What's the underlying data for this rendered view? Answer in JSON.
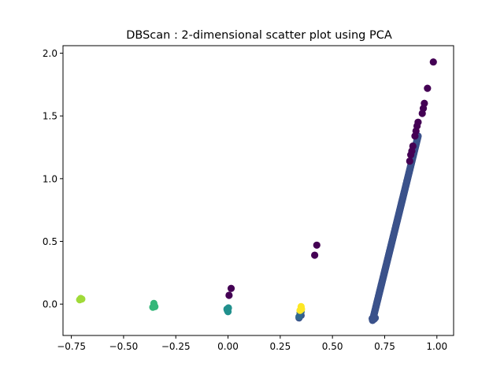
{
  "chart_data": {
    "type": "scatter",
    "title": "DBScan : 2-dimensional scatter plot using PCA",
    "xlabel": "",
    "ylabel": "",
    "xlim": [
      -0.79,
      1.08
    ],
    "ylim": [
      -0.25,
      2.06
    ],
    "grid": false,
    "legend": "none",
    "x_ticks": [
      -0.75,
      -0.5,
      -0.25,
      0.0,
      0.25,
      0.5,
      0.75,
      1.0
    ],
    "x_tick_labels": [
      "−0.75",
      "−0.50",
      "−0.25",
      "0.00",
      "0.25",
      "0.50",
      "0.75",
      "1.00"
    ],
    "y_ticks": [
      0.0,
      0.5,
      1.0,
      1.5,
      2.0
    ],
    "y_tick_labels": [
      "0.0",
      "0.5",
      "1.0",
      "1.5",
      "2.0"
    ],
    "cluster_colors": {
      "noise": "#440154",
      "c_line": "#3b528b",
      "c_dark": "#31688e",
      "c_zero": "#21908d",
      "c_mid": "#35b779",
      "c_lime": "#a0da39",
      "c_yellow": "#fde725"
    },
    "series": [
      {
        "cluster": "noise",
        "points": [
          [
            0.983,
            1.93
          ],
          [
            0.955,
            1.72
          ],
          [
            0.94,
            1.6
          ],
          [
            0.935,
            1.56
          ],
          [
            0.93,
            1.52
          ],
          [
            0.91,
            1.45
          ],
          [
            0.905,
            1.42
          ],
          [
            0.9,
            1.38
          ],
          [
            0.895,
            1.34
          ],
          [
            0.885,
            1.26
          ],
          [
            0.88,
            1.22
          ],
          [
            0.875,
            1.19
          ],
          [
            0.87,
            1.14
          ],
          [
            0.425,
            0.47
          ],
          [
            0.415,
            0.39
          ],
          [
            0.015,
            0.125
          ],
          [
            0.005,
            0.07
          ]
        ]
      },
      {
        "cluster": "c_line",
        "segment_from": [
          0.692,
          -0.13
        ],
        "segment_to": [
          0.91,
          1.34
        ],
        "count": 260,
        "points": [
          [
            0.69,
            -0.115
          ],
          [
            0.7,
            -0.12
          ],
          [
            0.705,
            -0.11
          ],
          [
            0.34,
            -0.11
          ],
          [
            0.35,
            -0.09
          ]
        ]
      },
      {
        "cluster": "c_dark",
        "points": [
          [
            0.345,
            -0.07
          ],
          [
            0.35,
            -0.06
          ],
          [
            0.34,
            -0.1
          ]
        ]
      },
      {
        "cluster": "c_zero",
        "points": [
          [
            -0.005,
            -0.04
          ],
          [
            0.0,
            -0.06
          ],
          [
            -0.003,
            -0.05
          ],
          [
            0.002,
            -0.03
          ]
        ]
      },
      {
        "cluster": "c_mid",
        "points": [
          [
            -0.355,
            0.005
          ],
          [
            -0.355,
            -0.015
          ],
          [
            -0.36,
            -0.025
          ],
          [
            -0.35,
            -0.02
          ]
        ]
      },
      {
        "cluster": "c_lime",
        "points": [
          [
            -0.705,
            0.045
          ],
          [
            -0.71,
            0.035
          ],
          [
            -0.7,
            0.04
          ]
        ]
      },
      {
        "cluster": "c_yellow",
        "points": [
          [
            0.35,
            -0.02
          ],
          [
            0.352,
            -0.04
          ],
          [
            0.345,
            -0.05
          ]
        ]
      }
    ]
  }
}
